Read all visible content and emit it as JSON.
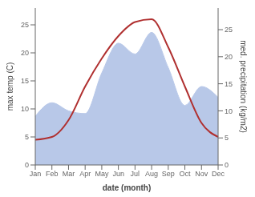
{
  "chart_data": {
    "type": "line",
    "categories": [
      "Jan",
      "Feb",
      "Mar",
      "Apr",
      "May",
      "Jun",
      "Jul",
      "Aug",
      "Sep",
      "Oct",
      "Nov",
      "Dec"
    ],
    "series": [
      {
        "type": "line",
        "color": "#b03030",
        "values": [
          4.5,
          5.0,
          8.0,
          14.0,
          19.0,
          23.0,
          25.5,
          26.0,
          21.0,
          14.0,
          7.5,
          5.0
        ]
      },
      {
        "type": "area",
        "axis": "y2",
        "color": "#b8c8e8",
        "values": [
          9.0,
          11.5,
          10.0,
          9.5,
          17.0,
          22.5,
          20.5,
          24.5,
          18.0,
          11.0,
          14.5,
          12.5
        ]
      }
    ],
    "xlabel": "date (month)",
    "ylabel": "max temp (C)",
    "y2label": "med. precipitation (kg/m2)",
    "ylim": [
      0,
      28
    ],
    "yticks": [
      0,
      5,
      10,
      15,
      20,
      25
    ],
    "y2lim": [
      0,
      29
    ],
    "y2ticks": [
      0,
      5,
      10,
      15,
      20,
      25
    ],
    "grid": false
  }
}
